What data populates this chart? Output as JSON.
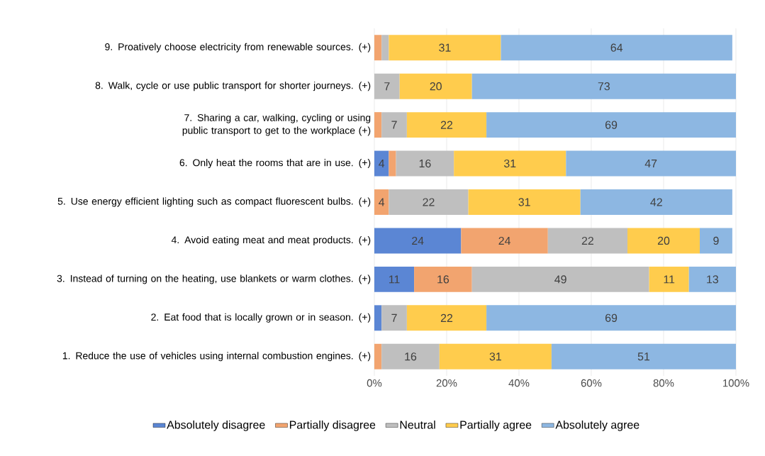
{
  "chart_data": {
    "type": "bar",
    "orientation": "horizontal",
    "stacked": true,
    "grid": "x",
    "legend": "bottom",
    "categories": [
      "9. Proatively choose electricity from renewable sources. (+)",
      "8. Walk, cycle or use public transport for shorter journeys. (+)",
      "7. Sharing a car, walking, cycling or using public transport to get to the workplace (+)",
      "6. Only heat the rooms that are in use. (+)",
      "5. Use energy efficient lighting such as compact fluorescent bulbs. (+)",
      "4. Avoid eating meat and meat products. (+)",
      "3. Instead of turning on the heating, use blankets or warm clothes. (+)",
      "2. Eat food that is locally grown or in season. (+)",
      "1. Reduce the use of vehicles using internal combustion engines. (+)"
    ],
    "xlim": [
      0,
      100
    ],
    "xticks": [
      {
        "value": 0,
        "label": "0%"
      },
      {
        "value": 20,
        "label": "20%"
      },
      {
        "value": 40,
        "label": "40%"
      },
      {
        "value": 60,
        "label": "60%"
      },
      {
        "value": 80,
        "label": "80%"
      },
      {
        "value": 100,
        "label": "100%"
      }
    ],
    "series": [
      {
        "name": "Absolutely disagree",
        "color": "#5b86d4",
        "values": [
          null,
          null,
          null,
          4,
          null,
          24,
          11,
          2,
          null
        ],
        "value_labels": [
          null,
          null,
          null,
          "4",
          null,
          "24",
          "11",
          null,
          null
        ]
      },
      {
        "name": "Partially disagree",
        "color": "#f2a46f",
        "values": [
          2,
          null,
          2,
          2,
          4,
          24,
          16,
          null,
          2
        ],
        "value_labels": [
          null,
          null,
          null,
          null,
          "4",
          "24",
          "16",
          null,
          null
        ]
      },
      {
        "name": "Neutral",
        "color": "#bfbfbf",
        "values": [
          2,
          7,
          7,
          16,
          22,
          22,
          49,
          7,
          16
        ],
        "value_labels": [
          null,
          "7",
          "7",
          "16",
          "22",
          "22",
          "49",
          "7",
          "16"
        ]
      },
      {
        "name": "Partially agree",
        "color": "#ffcc4d",
        "values": [
          31,
          20,
          22,
          31,
          31,
          20,
          11,
          22,
          31
        ],
        "value_labels": [
          "31",
          "20",
          "22",
          "31",
          "31",
          "20",
          "11",
          "22",
          "31"
        ]
      },
      {
        "name": "Absolutely agree",
        "color": "#8db7e2",
        "values": [
          64,
          73,
          69,
          47,
          42,
          9,
          13,
          69,
          51
        ],
        "value_labels": [
          "64",
          "73",
          "69",
          "47",
          "42",
          "9",
          "13",
          "69",
          "51"
        ]
      }
    ]
  }
}
